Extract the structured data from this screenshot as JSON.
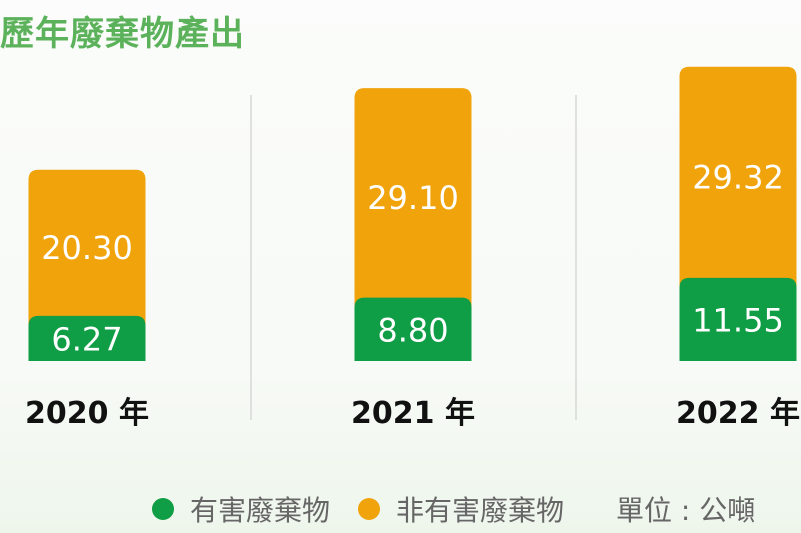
{
  "chart_data": {
    "type": "bar",
    "stacked": true,
    "title": "歷年廢棄物產出",
    "categories": [
      "2020 年",
      "2021 年",
      "2022 年"
    ],
    "series": [
      {
        "name": "有害廢棄物",
        "values": [
          6.27,
          8.8,
          11.55
        ],
        "color": "#0f9d45"
      },
      {
        "name": "非有害廢棄物",
        "values": [
          20.3,
          29.1,
          29.32
        ],
        "color": "#f0a30a"
      }
    ],
    "value_labels": [
      [
        "6.27",
        "8.80",
        "11.55"
      ],
      [
        "20.30",
        "29.10",
        "29.32"
      ]
    ],
    "unit_label": "單位 : 公噸",
    "legend_position": "bottom"
  }
}
